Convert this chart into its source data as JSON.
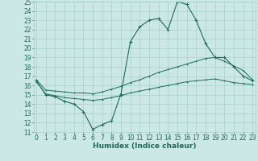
{
  "xlabel": "Humidex (Indice chaleur)",
  "x": [
    0,
    1,
    2,
    3,
    4,
    5,
    6,
    7,
    8,
    9,
    10,
    11,
    12,
    13,
    14,
    15,
    16,
    17,
    18,
    19,
    20,
    21,
    22,
    23
  ],
  "line_main": [
    16.5,
    15.0,
    14.8,
    14.3,
    14.0,
    13.2,
    11.3,
    11.8,
    12.2,
    15.1,
    20.7,
    22.3,
    23.0,
    23.2,
    22.0,
    25.0,
    24.7,
    23.0,
    20.5,
    19.0,
    19.0,
    18.0,
    17.0,
    16.5
  ],
  "line_upper": [
    16.6,
    15.5,
    15.4,
    15.3,
    15.2,
    15.2,
    15.1,
    15.3,
    15.6,
    15.9,
    16.3,
    16.6,
    17.0,
    17.4,
    17.7,
    18.0,
    18.3,
    18.6,
    18.9,
    19.0,
    18.6,
    18.1,
    17.6,
    16.6
  ],
  "line_lower": [
    16.4,
    15.1,
    14.9,
    14.7,
    14.6,
    14.5,
    14.4,
    14.5,
    14.7,
    14.9,
    15.2,
    15.4,
    15.6,
    15.8,
    16.0,
    16.2,
    16.4,
    16.5,
    16.6,
    16.7,
    16.5,
    16.3,
    16.2,
    16.1
  ],
  "ylim": [
    11,
    25
  ],
  "yticks": [
    11,
    12,
    13,
    14,
    15,
    16,
    17,
    18,
    19,
    20,
    21,
    22,
    23,
    24,
    25
  ],
  "xticks": [
    0,
    1,
    2,
    3,
    4,
    5,
    6,
    7,
    8,
    9,
    10,
    11,
    12,
    13,
    14,
    15,
    16,
    17,
    18,
    19,
    20,
    21,
    22,
    23
  ],
  "line_color": "#1a6b5a",
  "bg_color": "#cce8e4",
  "grid_color": "#aacfcc",
  "tick_fontsize": 5.5,
  "label_fontsize": 6.5,
  "label_fontweight": "bold"
}
